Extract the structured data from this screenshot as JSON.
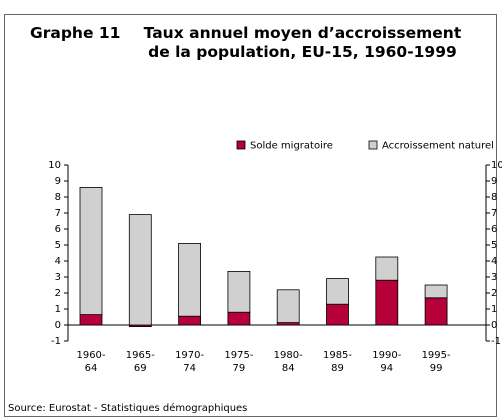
{
  "chart_data": {
    "type": "stacked_bar",
    "title_label": "Graphe 11",
    "title": "Taux annuel moyen d’accroissement de la population, EU-15, 1960-1999",
    "categories": [
      "1960-64",
      "1965-69",
      "1970-74",
      "1975-79",
      "1980-84",
      "1985-89",
      "1990-94",
      "1995-99"
    ],
    "series": [
      {
        "name": "Solde migratoire",
        "color": "#b5003a",
        "values": [
          0.65,
          -0.1,
          0.55,
          0.8,
          0.15,
          1.3,
          2.8,
          1.7
        ]
      },
      {
        "name": "Accroissement naturel",
        "color": "#d0d0d0",
        "values": [
          7.95,
          6.9,
          4.55,
          2.55,
          2.05,
          1.6,
          1.45,
          0.8
        ]
      }
    ],
    "ylim": [
      -1,
      10
    ],
    "yticks": [
      -1,
      0,
      1,
      2,
      3,
      4,
      5,
      6,
      7,
      8,
      9,
      10
    ],
    "y2lim": [
      -1,
      10
    ],
    "y2ticks": [
      -1,
      0,
      1,
      2,
      3,
      4,
      5,
      6,
      7,
      8,
      9,
      10
    ],
    "legend": "top-right",
    "source": "Source: Eurostat - Statistiques démographiques"
  }
}
